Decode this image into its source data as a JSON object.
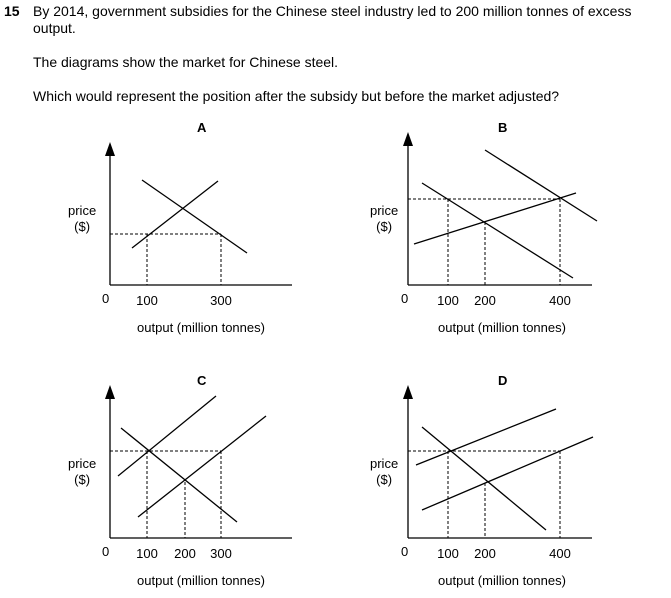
{
  "question": {
    "number": "15",
    "lines": [
      "By 2014, government subsidies for the Chinese steel industry led to 200 million tonnes of excess",
      "output.",
      "The diagrams show the market for Chinese steel.",
      "Which would represent the position after the subsidy but before the market adjusted?"
    ]
  },
  "panels": [
    {
      "label": "A",
      "ylabel_1": "price",
      "ylabel_2": "($)",
      "origin": "0",
      "ticks": [
        "100",
        "300"
      ],
      "xlabel": "output (million tonnes)"
    },
    {
      "label": "B",
      "ylabel_1": "price",
      "ylabel_2": "($)",
      "origin": "0",
      "ticks": [
        "100",
        "200",
        "400"
      ],
      "xlabel": "output (million tonnes)"
    },
    {
      "label": "C",
      "ylabel_1": "price",
      "ylabel_2": "($)",
      "origin": "0",
      "ticks": [
        "100",
        "200",
        "300"
      ],
      "xlabel": "output (million tonnes)"
    },
    {
      "label": "D",
      "ylabel_1": "price",
      "ylabel_2": "($)",
      "origin": "0",
      "ticks": [
        "100",
        "200",
        "400"
      ],
      "xlabel": "output (million tonnes)"
    }
  ],
  "colors": {
    "ink": "#000000",
    "background": "#ffffff"
  }
}
